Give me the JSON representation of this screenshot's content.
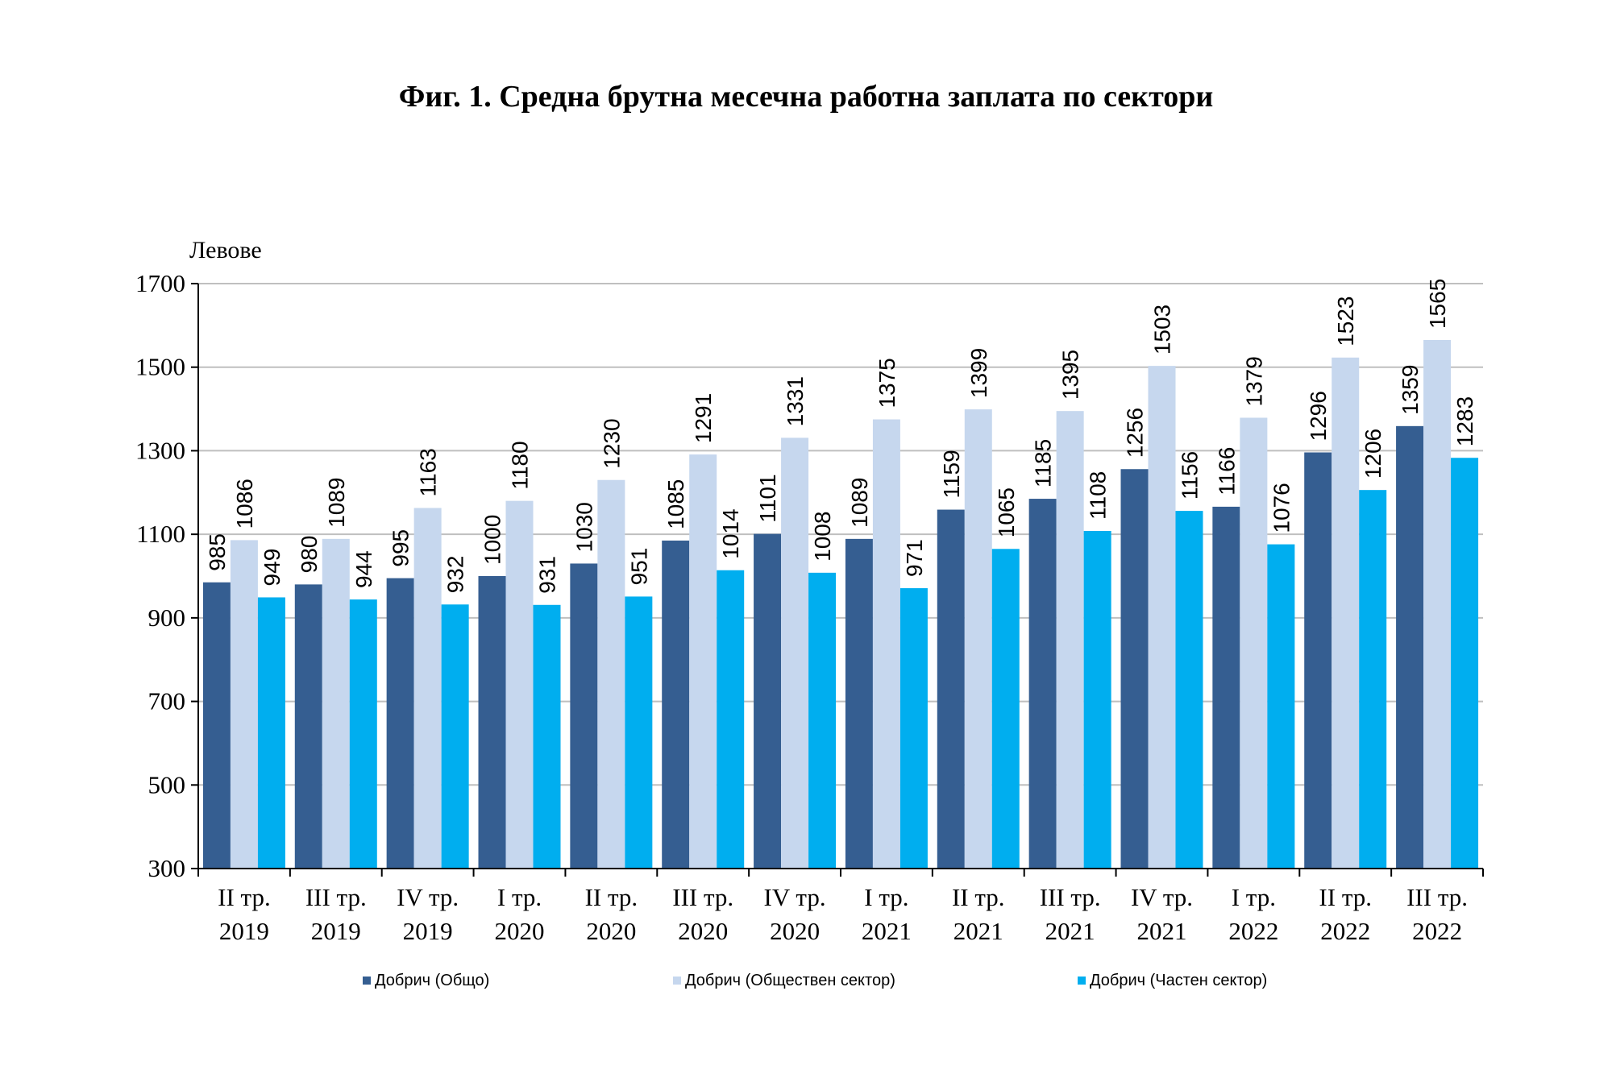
{
  "chart_data": {
    "type": "bar",
    "title": "Фиг. 1. Средна брутна месечна работна заплата по сектори",
    "ylabel": "Левове",
    "xlabel": "",
    "ylim": [
      300,
      1700
    ],
    "yticks": [
      300,
      500,
      700,
      900,
      1100,
      1300,
      1500,
      1700
    ],
    "grid": true,
    "legend_position": "bottom",
    "categories": [
      [
        "II тр.",
        "2019"
      ],
      [
        "III тр.",
        "2019"
      ],
      [
        "IV тр.",
        "2019"
      ],
      [
        "I тр.",
        "2020"
      ],
      [
        "II тр.",
        "2020"
      ],
      [
        "III тр.",
        "2020"
      ],
      [
        "IV тр.",
        "2020"
      ],
      [
        "I тр.",
        "2021"
      ],
      [
        "II тр.",
        "2021"
      ],
      [
        "III тр.",
        "2021"
      ],
      [
        "IV тр.",
        "2021"
      ],
      [
        "I тр.",
        "2022"
      ],
      [
        "II тр.",
        "2022"
      ],
      [
        "III тр.",
        "2022"
      ]
    ],
    "series": [
      {
        "name": "Добрич (Общо)",
        "color": "#355E91",
        "values": [
          985,
          980,
          995,
          1000,
          1030,
          1085,
          1101,
          1089,
          1159,
          1185,
          1256,
          1166,
          1296,
          1359
        ]
      },
      {
        "name": "Добрич (Обществен сектор)",
        "color": "#C6D7EE",
        "values": [
          1086,
          1089,
          1163,
          1180,
          1230,
          1291,
          1331,
          1375,
          1399,
          1395,
          1503,
          1379,
          1523,
          1565
        ]
      },
      {
        "name": "Добрич (Частен сектор)",
        "color": "#00AEEF",
        "values": [
          949,
          944,
          932,
          931,
          951,
          1014,
          1008,
          971,
          1065,
          1108,
          1156,
          1076,
          1206,
          1283
        ]
      }
    ]
  }
}
